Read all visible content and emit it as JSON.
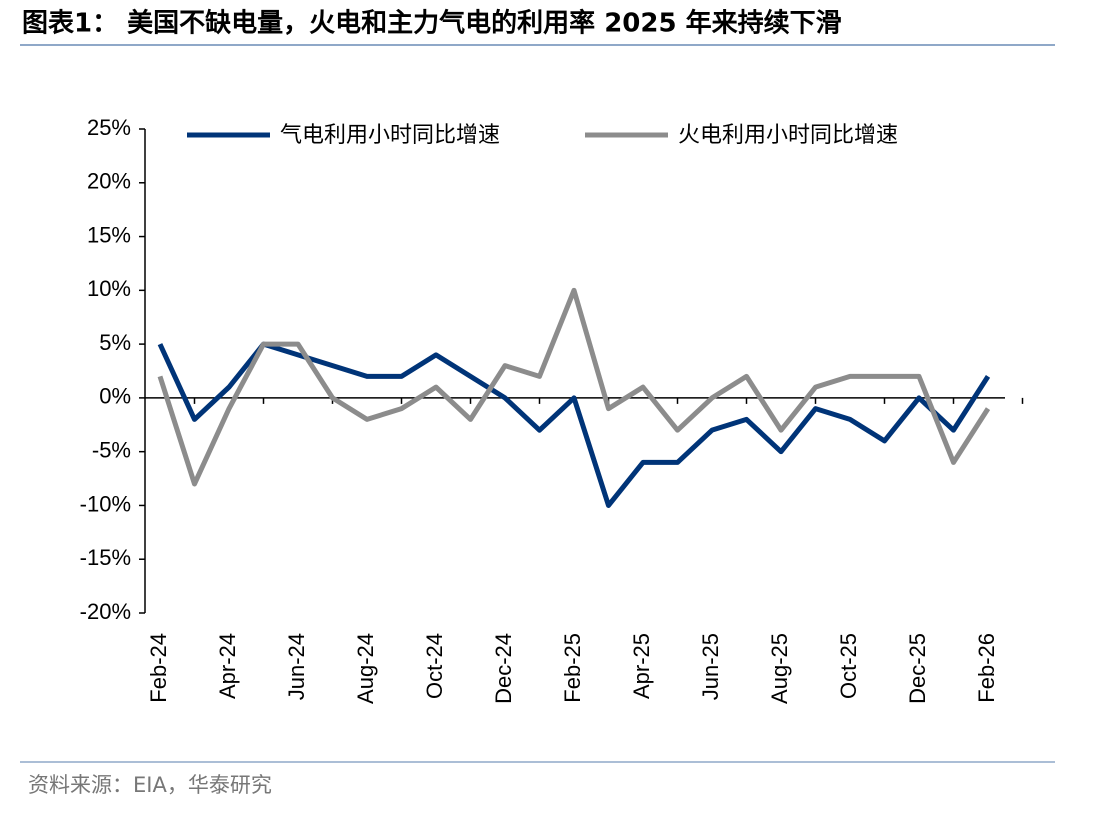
{
  "header": {
    "title": "图表1： 美国不缺电量，火电和主力气电的利用率 2025 年来持续下滑"
  },
  "chart_data": {
    "type": "line",
    "categories": [
      "Feb-24",
      null,
      "Apr-24",
      null,
      "Jun-24",
      null,
      "Aug-24",
      null,
      "Oct-24",
      null,
      "Dec-24",
      null,
      "Feb-25",
      null,
      "Apr-25",
      null,
      "Jun-25",
      null,
      "Aug-25",
      null,
      "Oct-25",
      null,
      "Dec-25",
      null,
      "Feb-26"
    ],
    "series": [
      {
        "name": "气电利用小时同比增速",
        "color": "#003478",
        "values": [
          5,
          -2,
          1,
          5,
          4,
          3,
          2,
          2,
          4,
          2,
          0,
          -3,
          0,
          -10,
          -6,
          -6,
          -3,
          -2,
          -5,
          -1,
          -2,
          -4,
          0,
          -3,
          2
        ]
      },
      {
        "name": "火电利用小时同比增速",
        "color": "#8c8c8c",
        "values": [
          2,
          -8,
          -1,
          5,
          5,
          0,
          -2,
          -1,
          1,
          -2,
          3,
          2,
          10,
          -1,
          1,
          -3,
          0,
          2,
          -3,
          1,
          2,
          2,
          2,
          -6,
          -1
        ]
      }
    ],
    "ylim": [
      -20,
      25
    ],
    "yticks": [
      {
        "value": -20,
        "label": "-20%"
      },
      {
        "value": -15,
        "label": "-15%"
      },
      {
        "value": -10,
        "label": "-10%"
      },
      {
        "value": -5,
        "label": "-5%"
      },
      {
        "value": 0,
        "label": "0%"
      },
      {
        "value": 5,
        "label": "5%"
      },
      {
        "value": 10,
        "label": "10%"
      },
      {
        "value": 15,
        "label": "15%"
      },
      {
        "value": 20,
        "label": "20%"
      },
      {
        "value": 25,
        "label": "25%"
      }
    ],
    "legend": "top"
  },
  "footer": {
    "source": "资料来源：EIA，华泰研究"
  }
}
